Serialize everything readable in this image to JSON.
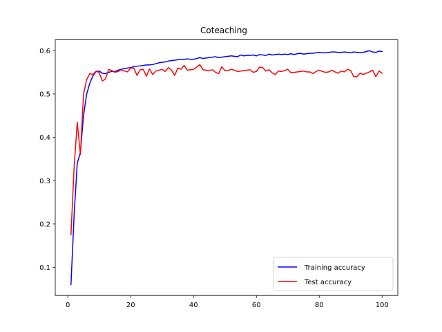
{
  "chart_data": {
    "type": "line",
    "title": "Coteaching",
    "xlabel": "",
    "ylabel": "",
    "xlim": [
      -4,
      105
    ],
    "ylim": [
      0.035,
      0.625
    ],
    "xticks": [
      0,
      20,
      40,
      60,
      80,
      100
    ],
    "yticks": [
      0.1,
      0.2,
      0.3,
      0.4,
      0.5,
      0.6
    ],
    "xtick_labels": [
      "0",
      "20",
      "40",
      "60",
      "80",
      "100"
    ],
    "ytick_labels": [
      "0.1",
      "0.2",
      "0.3",
      "0.4",
      "0.5",
      "0.6"
    ],
    "grid": false,
    "legend_position": "lower-right",
    "series": [
      {
        "name": "Training accuracy",
        "color": "#0000ff",
        "x": [
          1,
          2,
          3,
          4,
          5,
          6,
          7,
          8,
          9,
          10,
          11,
          12,
          13,
          14,
          15,
          16,
          17,
          18,
          19,
          20,
          21,
          22,
          23,
          24,
          25,
          26,
          27,
          28,
          29,
          30,
          31,
          32,
          33,
          34,
          35,
          36,
          37,
          38,
          39,
          40,
          41,
          42,
          43,
          44,
          45,
          46,
          47,
          48,
          49,
          50,
          51,
          52,
          53,
          54,
          55,
          56,
          57,
          58,
          59,
          60,
          61,
          62,
          63,
          64,
          65,
          66,
          67,
          68,
          69,
          70,
          71,
          72,
          73,
          74,
          75,
          76,
          77,
          78,
          79,
          80,
          81,
          82,
          83,
          84,
          85,
          86,
          87,
          88,
          89,
          90,
          91,
          92,
          93,
          94,
          95,
          96,
          97,
          98,
          99,
          100
        ],
        "values": [
          0.06,
          0.22,
          0.34,
          0.365,
          0.45,
          0.5,
          0.525,
          0.542,
          0.552,
          0.553,
          0.548,
          0.547,
          0.55,
          0.552,
          0.552,
          0.555,
          0.557,
          0.559,
          0.56,
          0.561,
          0.563,
          0.564,
          0.565,
          0.566,
          0.567,
          0.567,
          0.568,
          0.57,
          0.572,
          0.573,
          0.574,
          0.576,
          0.577,
          0.578,
          0.579,
          0.58,
          0.58,
          0.581,
          0.58,
          0.58,
          0.582,
          0.584,
          0.582,
          0.583,
          0.584,
          0.585,
          0.586,
          0.584,
          0.585,
          0.586,
          0.587,
          0.588,
          0.587,
          0.586,
          0.59,
          0.588,
          0.589,
          0.589,
          0.59,
          0.588,
          0.591,
          0.59,
          0.589,
          0.592,
          0.59,
          0.591,
          0.592,
          0.591,
          0.592,
          0.591,
          0.593,
          0.591,
          0.593,
          0.594,
          0.592,
          0.593,
          0.594,
          0.594,
          0.595,
          0.596,
          0.595,
          0.595,
          0.596,
          0.597,
          0.597,
          0.596,
          0.596,
          0.597,
          0.596,
          0.595,
          0.597,
          0.596,
          0.595,
          0.596,
          0.598,
          0.6,
          0.597,
          0.596,
          0.599,
          0.598
        ]
      },
      {
        "name": "Test accuracy",
        "color": "#ff0000",
        "x": [
          1,
          2,
          3,
          4,
          5,
          6,
          7,
          8,
          9,
          10,
          11,
          12,
          13,
          14,
          15,
          16,
          17,
          18,
          19,
          20,
          21,
          22,
          23,
          24,
          25,
          26,
          27,
          28,
          29,
          30,
          31,
          32,
          33,
          34,
          35,
          36,
          37,
          38,
          39,
          40,
          41,
          42,
          43,
          44,
          45,
          46,
          47,
          48,
          49,
          50,
          51,
          52,
          53,
          54,
          55,
          56,
          57,
          58,
          59,
          60,
          61,
          62,
          63,
          64,
          65,
          66,
          67,
          68,
          69,
          70,
          71,
          72,
          73,
          74,
          75,
          76,
          77,
          78,
          79,
          80,
          81,
          82,
          83,
          84,
          85,
          86,
          87,
          88,
          89,
          90,
          91,
          92,
          93,
          94,
          95,
          96,
          97,
          98,
          99,
          100
        ],
        "values": [
          0.175,
          0.33,
          0.435,
          0.36,
          0.5,
          0.533,
          0.547,
          0.545,
          0.553,
          0.549,
          0.53,
          0.535,
          0.557,
          0.554,
          0.55,
          0.552,
          0.556,
          0.553,
          0.551,
          0.56,
          0.56,
          0.543,
          0.556,
          0.557,
          0.541,
          0.558,
          0.545,
          0.553,
          0.555,
          0.557,
          0.552,
          0.561,
          0.555,
          0.543,
          0.56,
          0.557,
          0.566,
          0.555,
          0.556,
          0.557,
          0.562,
          0.568,
          0.556,
          0.555,
          0.554,
          0.556,
          0.55,
          0.547,
          0.563,
          0.554,
          0.554,
          0.557,
          0.555,
          0.552,
          0.553,
          0.554,
          0.555,
          0.556,
          0.55,
          0.552,
          0.562,
          0.561,
          0.553,
          0.556,
          0.549,
          0.545,
          0.553,
          0.552,
          0.554,
          0.557,
          0.549,
          0.55,
          0.551,
          0.552,
          0.553,
          0.551,
          0.551,
          0.547,
          0.552,
          0.555,
          0.552,
          0.55,
          0.551,
          0.555,
          0.551,
          0.548,
          0.553,
          0.551,
          0.557,
          0.554,
          0.54,
          0.54,
          0.548,
          0.545,
          0.548,
          0.551,
          0.555,
          0.54,
          0.553,
          0.548
        ]
      }
    ]
  }
}
